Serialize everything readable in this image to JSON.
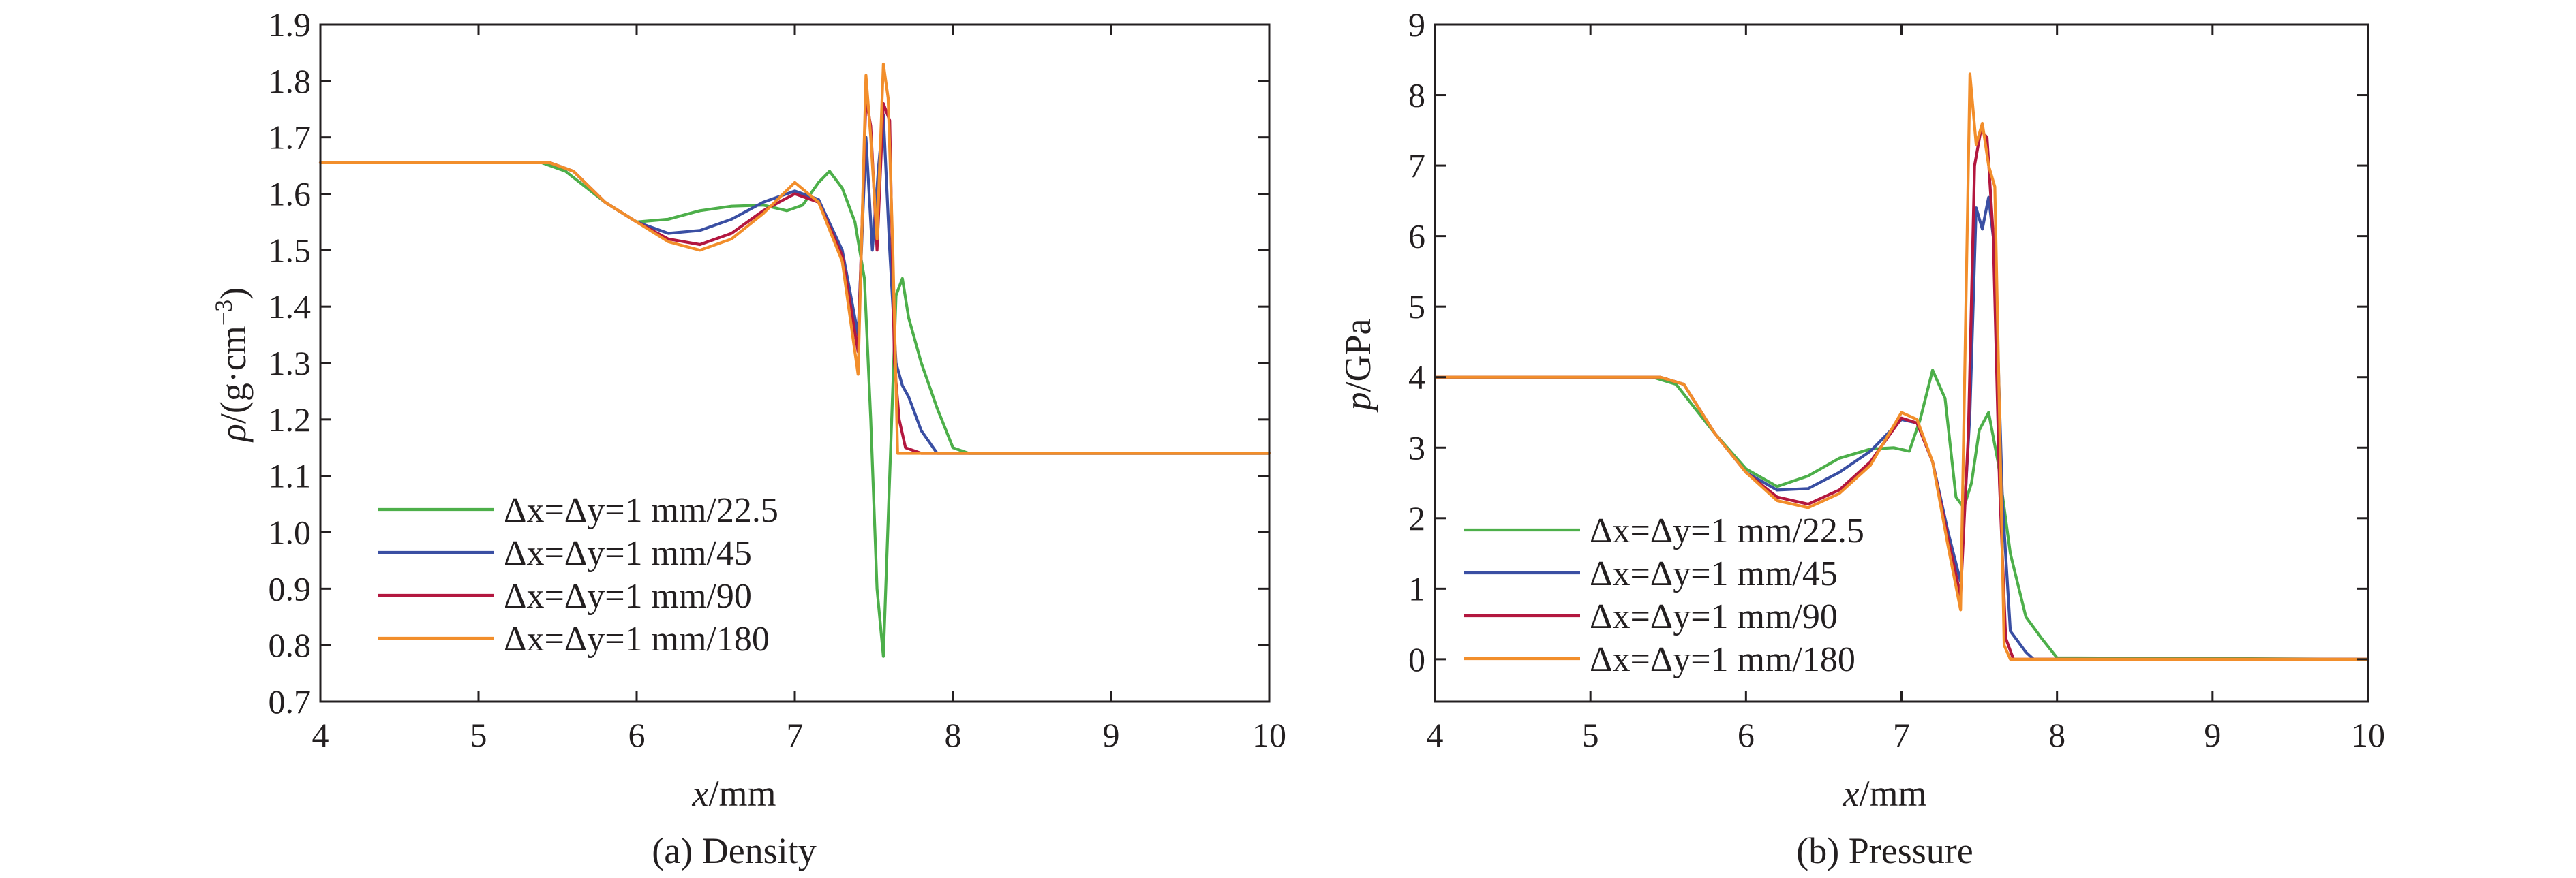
{
  "chart_data": [
    {
      "type": "line",
      "caption": "(a) Density",
      "xlabel": {
        "var": "x",
        "unit": "/mm"
      },
      "ylabel": {
        "var": "ρ",
        "unit": "/(g·cm",
        "sup": "−3",
        "close": ")"
      },
      "xlim": [
        4,
        10
      ],
      "ylim": [
        0.7,
        1.9
      ],
      "xticks": [
        4,
        5,
        6,
        7,
        8,
        9,
        10
      ],
      "xtick_labels": [
        "4",
        "5",
        "6",
        "7",
        "8",
        "9",
        "10"
      ],
      "yticks": [
        0.7,
        0.8,
        0.9,
        1.0,
        1.1,
        1.2,
        1.3,
        1.4,
        1.5,
        1.6,
        1.7,
        1.8,
        1.9
      ],
      "ytick_labels": [
        "0.7",
        "0.8",
        "0.9",
        "1.0",
        "1.1",
        "1.2",
        "1.3",
        "1.4",
        "1.5",
        "1.6",
        "1.7",
        "1.8",
        "1.9"
      ],
      "grid": false,
      "legend": "lower-left",
      "series": [
        {
          "name": "Δx=Δy=1 mm/22.5",
          "color": "#4daf4a",
          "x": [
            4.0,
            5.4,
            5.55,
            5.8,
            6.0,
            6.2,
            6.4,
            6.6,
            6.8,
            6.95,
            7.05,
            7.15,
            7.22,
            7.3,
            7.38,
            7.44,
            7.48,
            7.52,
            7.56,
            7.6,
            7.64,
            7.68,
            7.72,
            7.8,
            7.9,
            8.0,
            8.1,
            10.0
          ],
          "y": [
            1.655,
            1.655,
            1.64,
            1.585,
            1.55,
            1.555,
            1.57,
            1.578,
            1.58,
            1.57,
            1.58,
            1.62,
            1.64,
            1.61,
            1.55,
            1.45,
            1.2,
            0.9,
            0.78,
            1.1,
            1.42,
            1.45,
            1.38,
            1.3,
            1.22,
            1.15,
            1.14,
            1.14
          ]
        },
        {
          "name": "Δx=Δy=1 mm/45",
          "color": "#3a4fa3",
          "x": [
            4.0,
            5.45,
            5.6,
            5.8,
            6.0,
            6.2,
            6.4,
            6.6,
            6.8,
            7.0,
            7.15,
            7.3,
            7.4,
            7.45,
            7.49,
            7.53,
            7.56,
            7.6,
            7.64,
            7.68,
            7.72,
            7.8,
            7.9,
            10.0
          ],
          "y": [
            1.655,
            1.655,
            1.64,
            1.585,
            1.55,
            1.53,
            1.535,
            1.555,
            1.585,
            1.605,
            1.59,
            1.5,
            1.35,
            1.7,
            1.5,
            1.65,
            1.74,
            1.5,
            1.3,
            1.26,
            1.24,
            1.18,
            1.14,
            1.14
          ]
        },
        {
          "name": "Δx=Δy=1 mm/90",
          "color": "#b3173f",
          "x": [
            4.0,
            5.45,
            5.6,
            5.8,
            6.0,
            6.2,
            6.4,
            6.6,
            6.8,
            7.0,
            7.15,
            7.3,
            7.4,
            7.45,
            7.48,
            7.52,
            7.56,
            7.6,
            7.63,
            7.66,
            7.7,
            7.8,
            10.0
          ],
          "y": [
            1.655,
            1.655,
            1.64,
            1.585,
            1.55,
            1.52,
            1.51,
            1.53,
            1.57,
            1.6,
            1.585,
            1.49,
            1.32,
            1.77,
            1.72,
            1.5,
            1.76,
            1.73,
            1.3,
            1.2,
            1.15,
            1.14,
            1.14
          ]
        },
        {
          "name": "Δx=Δy=1 mm/180",
          "color": "#f28e2b",
          "x": [
            4.0,
            5.45,
            5.6,
            5.8,
            6.0,
            6.2,
            6.4,
            6.6,
            6.8,
            7.0,
            7.15,
            7.3,
            7.4,
            7.45,
            7.48,
            7.52,
            7.56,
            7.59,
            7.62,
            7.65,
            7.68,
            10.0
          ],
          "y": [
            1.655,
            1.655,
            1.64,
            1.585,
            1.55,
            1.515,
            1.5,
            1.52,
            1.565,
            1.62,
            1.585,
            1.48,
            1.28,
            1.81,
            1.7,
            1.52,
            1.83,
            1.77,
            1.5,
            1.14,
            1.14,
            1.14
          ]
        }
      ]
    },
    {
      "type": "line",
      "caption": "(b) Pressure",
      "xlabel": {
        "var": "x",
        "unit": "/mm"
      },
      "ylabel": {
        "var": "p",
        "unit": "/GPa"
      },
      "xlim": [
        4,
        10
      ],
      "ylim": [
        -0.6,
        9
      ],
      "xticks": [
        4,
        5,
        6,
        7,
        8,
        9,
        10
      ],
      "xtick_labels": [
        "4",
        "5",
        "6",
        "7",
        "8",
        "9",
        "10"
      ],
      "yticks": [
        0,
        1,
        2,
        3,
        4,
        5,
        6,
        7,
        8,
        9
      ],
      "ytick_labels": [
        "0",
        "1",
        "2",
        "3",
        "4",
        "5",
        "6",
        "7",
        "8",
        "9"
      ],
      "grid": false,
      "legend": "lower-left",
      "series": [
        {
          "name": "Δx=Δy=1 mm/22.5",
          "color": "#4daf4a",
          "x": [
            4.0,
            5.4,
            5.55,
            5.8,
            6.0,
            6.2,
            6.4,
            6.6,
            6.8,
            6.95,
            7.05,
            7.12,
            7.2,
            7.28,
            7.35,
            7.4,
            7.45,
            7.5,
            7.56,
            7.62,
            7.7,
            7.8,
            7.9,
            8.0,
            10.0
          ],
          "y": [
            4.0,
            4.0,
            3.9,
            3.2,
            2.7,
            2.45,
            2.6,
            2.85,
            2.98,
            3.0,
            2.95,
            3.4,
            4.1,
            3.7,
            2.3,
            2.15,
            2.5,
            3.25,
            3.5,
            2.8,
            1.5,
            0.6,
            0.3,
            0.02,
            0.0
          ]
        },
        {
          "name": "Δx=Δy=1 mm/45",
          "color": "#3a4fa3",
          "x": [
            4.0,
            5.45,
            5.6,
            5.8,
            6.0,
            6.2,
            6.4,
            6.6,
            6.8,
            7.0,
            7.1,
            7.2,
            7.3,
            7.38,
            7.44,
            7.48,
            7.52,
            7.56,
            7.6,
            7.65,
            7.7,
            7.8,
            7.85,
            10.0
          ],
          "y": [
            4.0,
            4.0,
            3.9,
            3.2,
            2.65,
            2.4,
            2.42,
            2.65,
            2.95,
            3.4,
            3.35,
            2.8,
            1.8,
            1.1,
            3.5,
            6.4,
            6.1,
            6.55,
            5.8,
            2.2,
            0.4,
            0.1,
            0.0,
            0.0
          ]
        },
        {
          "name": "Δx=Δy=1 mm/90",
          "color": "#b3173f",
          "x": [
            4.0,
            5.45,
            5.6,
            5.8,
            6.0,
            6.2,
            6.4,
            6.6,
            6.8,
            7.0,
            7.1,
            7.2,
            7.3,
            7.38,
            7.43,
            7.47,
            7.51,
            7.55,
            7.59,
            7.63,
            7.67,
            7.72,
            10.0
          ],
          "y": [
            4.0,
            4.0,
            3.9,
            3.2,
            2.65,
            2.3,
            2.2,
            2.4,
            2.8,
            3.42,
            3.35,
            2.8,
            1.7,
            0.9,
            3.2,
            7.0,
            7.5,
            7.4,
            6.0,
            2.5,
            0.3,
            0.0,
            0.0
          ]
        },
        {
          "name": "Δx=Δy=1 mm/180",
          "color": "#f28e2b",
          "x": [
            4.0,
            5.45,
            5.6,
            5.8,
            6.0,
            6.2,
            6.4,
            6.6,
            6.8,
            7.0,
            7.1,
            7.2,
            7.3,
            7.38,
            7.44,
            7.48,
            7.52,
            7.56,
            7.6,
            7.63,
            7.66,
            7.7,
            10.0
          ],
          "y": [
            4.0,
            4.0,
            3.9,
            3.2,
            2.65,
            2.25,
            2.15,
            2.35,
            2.75,
            3.5,
            3.4,
            2.8,
            1.6,
            0.7,
            8.3,
            7.3,
            7.6,
            7.0,
            6.7,
            3.5,
            0.2,
            0.0,
            0.0
          ]
        }
      ]
    }
  ]
}
